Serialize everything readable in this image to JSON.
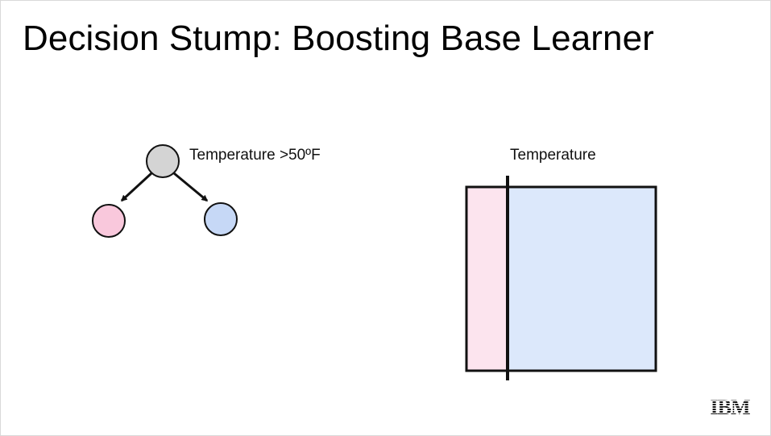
{
  "slide": {
    "title": "Decision Stump: Boosting Base Learner"
  },
  "tree": {
    "root_label": "Temperature >50ºF",
    "root_color": "#d4d4d4",
    "left_leaf_color": "#f9c8dc",
    "right_leaf_color": "#c6d8f6"
  },
  "partition": {
    "split_feature_label": "Temperature",
    "left_region_color": "#fce4ee",
    "right_region_color": "#dce8fb"
  },
  "logo": {
    "text": "IBM"
  }
}
